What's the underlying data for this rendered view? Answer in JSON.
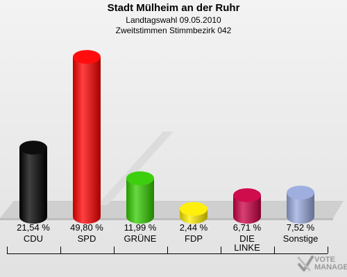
{
  "header": {
    "title": "Stadt Mülheim an der Ruhr",
    "subtitle": "Landtagswahl 09.05.2010",
    "subtitle2": "Zweitstimmen Stimmbezirk 042"
  },
  "chart_data": {
    "type": "bar",
    "title": "Stadt Mülheim an der Ruhr",
    "subtitle": "Landtagswahl 09.05.2010 / Zweitstimmen Stimmbezirk 042",
    "categories": [
      "CDU",
      "SPD",
      "GRÜNE",
      "FDP",
      "DIE LINKE",
      "Sonstige"
    ],
    "values": [
      21.54,
      49.8,
      11.99,
      2.44,
      6.71,
      7.52
    ],
    "value_labels": [
      "21,54 %",
      "49,80 %",
      "11,99 %",
      "2,44 %",
      "6,71 %",
      "7,52 %"
    ],
    "colors": [
      "#000000",
      "#ff0000",
      "#33cc00",
      "#ffee00",
      "#cc0044",
      "#99aadd"
    ],
    "ylim": [
      0,
      52
    ],
    "grid": false,
    "legend": "none"
  },
  "watermark": {
    "line1": "VOTE",
    "line2": "MANAGER"
  }
}
